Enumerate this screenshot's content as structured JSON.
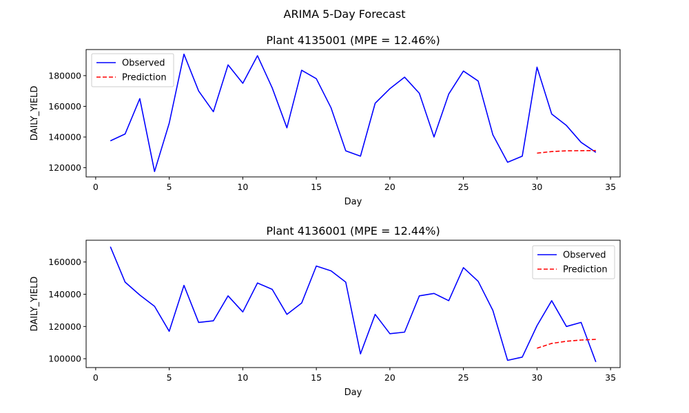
{
  "suptitle": "ARIMA 5-Day Forecast",
  "colors": {
    "observed": "#0000ff",
    "prediction": "#ff0000",
    "axes": "#000000",
    "legend_border": "#cccccc"
  },
  "chart_data": [
    {
      "type": "line",
      "title": "Plant 4135001 (MPE = 12.46%)",
      "xlabel": "Day",
      "ylabel": "DAILY_YIELD",
      "xlim": [
        -0.65,
        35.65
      ],
      "ylim": [
        114000,
        197000
      ],
      "xticks": [
        0,
        5,
        10,
        15,
        20,
        25,
        30,
        35
      ],
      "yticks": [
        120000,
        140000,
        160000,
        180000
      ],
      "grid": false,
      "legend": "upper left",
      "series": [
        {
          "name": "Observed",
          "style": "solid",
          "x": [
            1,
            2,
            3,
            4,
            5,
            6,
            7,
            8,
            9,
            10,
            11,
            12,
            13,
            14,
            15,
            16,
            17,
            18,
            19,
            20,
            21,
            22,
            23,
            24,
            25,
            26,
            27,
            28,
            29,
            30,
            31,
            32,
            33,
            34
          ],
          "y": [
            137500,
            142000,
            165000,
            117500,
            149000,
            194000,
            170000,
            156500,
            187000,
            175000,
            193000,
            172000,
            146000,
            183500,
            178000,
            159000,
            131000,
            127500,
            162000,
            171500,
            179000,
            168500,
            140000,
            168000,
            183000,
            176500,
            141500,
            123500,
            127500,
            185500,
            155000,
            147500,
            136500,
            130000
          ]
        },
        {
          "name": "Prediction",
          "style": "dashed",
          "x": [
            30,
            31,
            32,
            33,
            34
          ],
          "y": [
            129500,
            130500,
            131000,
            131100,
            131200
          ]
        }
      ]
    },
    {
      "type": "line",
      "title": "Plant 4136001 (MPE = 12.44%)",
      "xlabel": "Day",
      "ylabel": "DAILY_YIELD",
      "xlim": [
        -0.65,
        35.65
      ],
      "ylim": [
        94500,
        173500
      ],
      "xticks": [
        0,
        5,
        10,
        15,
        20,
        25,
        30,
        35
      ],
      "yticks": [
        100000,
        120000,
        140000,
        160000
      ],
      "grid": false,
      "legend": "upper right",
      "series": [
        {
          "name": "Observed",
          "style": "solid",
          "x": [
            1,
            2,
            3,
            4,
            5,
            6,
            7,
            8,
            9,
            10,
            11,
            12,
            13,
            14,
            15,
            16,
            17,
            18,
            19,
            20,
            21,
            22,
            23,
            24,
            25,
            26,
            27,
            28,
            29,
            30,
            31,
            32,
            33,
            34
          ],
          "y": [
            169500,
            147500,
            139500,
            132500,
            117000,
            145500,
            122500,
            123500,
            139000,
            129000,
            147000,
            143000,
            127500,
            134500,
            157500,
            154500,
            147500,
            103000,
            127500,
            115500,
            116500,
            139000,
            140500,
            136000,
            156500,
            148000,
            130000,
            99000,
            101000,
            120500,
            136000,
            120000,
            122500,
            98000
          ]
        },
        {
          "name": "Prediction",
          "style": "dashed",
          "x": [
            30,
            31,
            32,
            33,
            34
          ],
          "y": [
            106500,
            109500,
            110800,
            111600,
            112000
          ]
        }
      ]
    }
  ]
}
